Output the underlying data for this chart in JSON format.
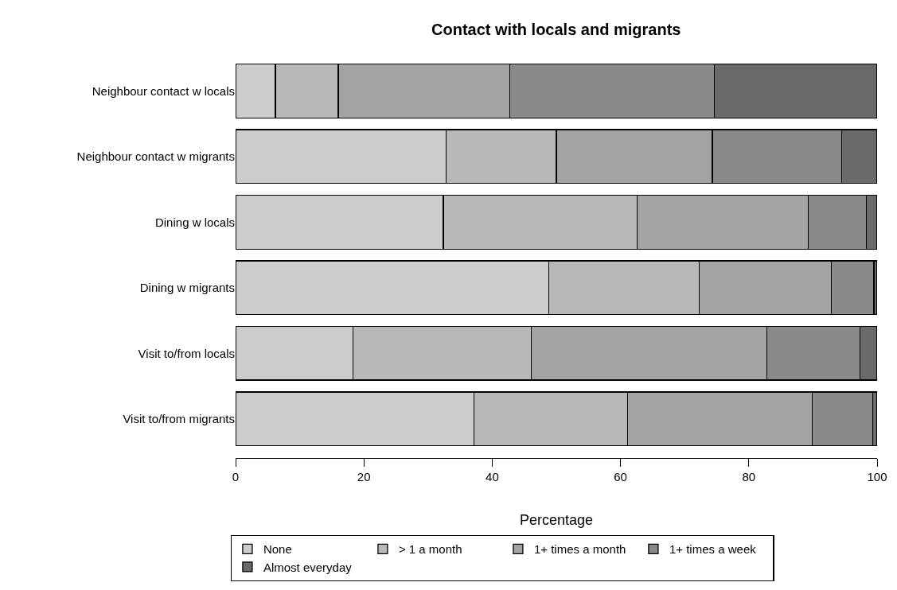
{
  "chart_data": {
    "type": "bar",
    "title": "Contact with locals and migrants",
    "xlabel": "Percentage",
    "orientation": "horizontal",
    "stacked": true,
    "legend": "bottom",
    "categories": [
      "Neighbour contact w locals",
      "Neighbour contact w migrants",
      "Dining w locals",
      "Dining w migrants",
      "Visit to/from locals",
      "Visit to/from migrants"
    ],
    "xlim": [
      0,
      100
    ],
    "xticks": [
      0,
      20,
      40,
      60,
      80,
      100
    ],
    "series": [
      {
        "name": "None",
        "color": "#cccccc",
        "values": [
          6.2,
          32.8,
          32.4,
          48.8,
          18.3,
          37.2
        ]
      },
      {
        "name": "> 1 a month",
        "color": "#b8b8b8",
        "values": [
          9.8,
          17.2,
          30.2,
          23.5,
          27.8,
          23.9
        ]
      },
      {
        "name": "1+ times a month",
        "color": "#a3a3a3",
        "values": [
          26.7,
          24.3,
          26.7,
          20.6,
          36.7,
          28.8
        ]
      },
      {
        "name": "1+ times a week",
        "color": "#8a8a8a",
        "values": [
          31.9,
          20.2,
          9.0,
          6.6,
          14.5,
          9.4
        ]
      },
      {
        "name": "Almost everyday",
        "color": "#6a6a6a",
        "values": [
          25.4,
          5.5,
          1.7,
          0.5,
          2.7,
          0.7
        ]
      }
    ]
  }
}
